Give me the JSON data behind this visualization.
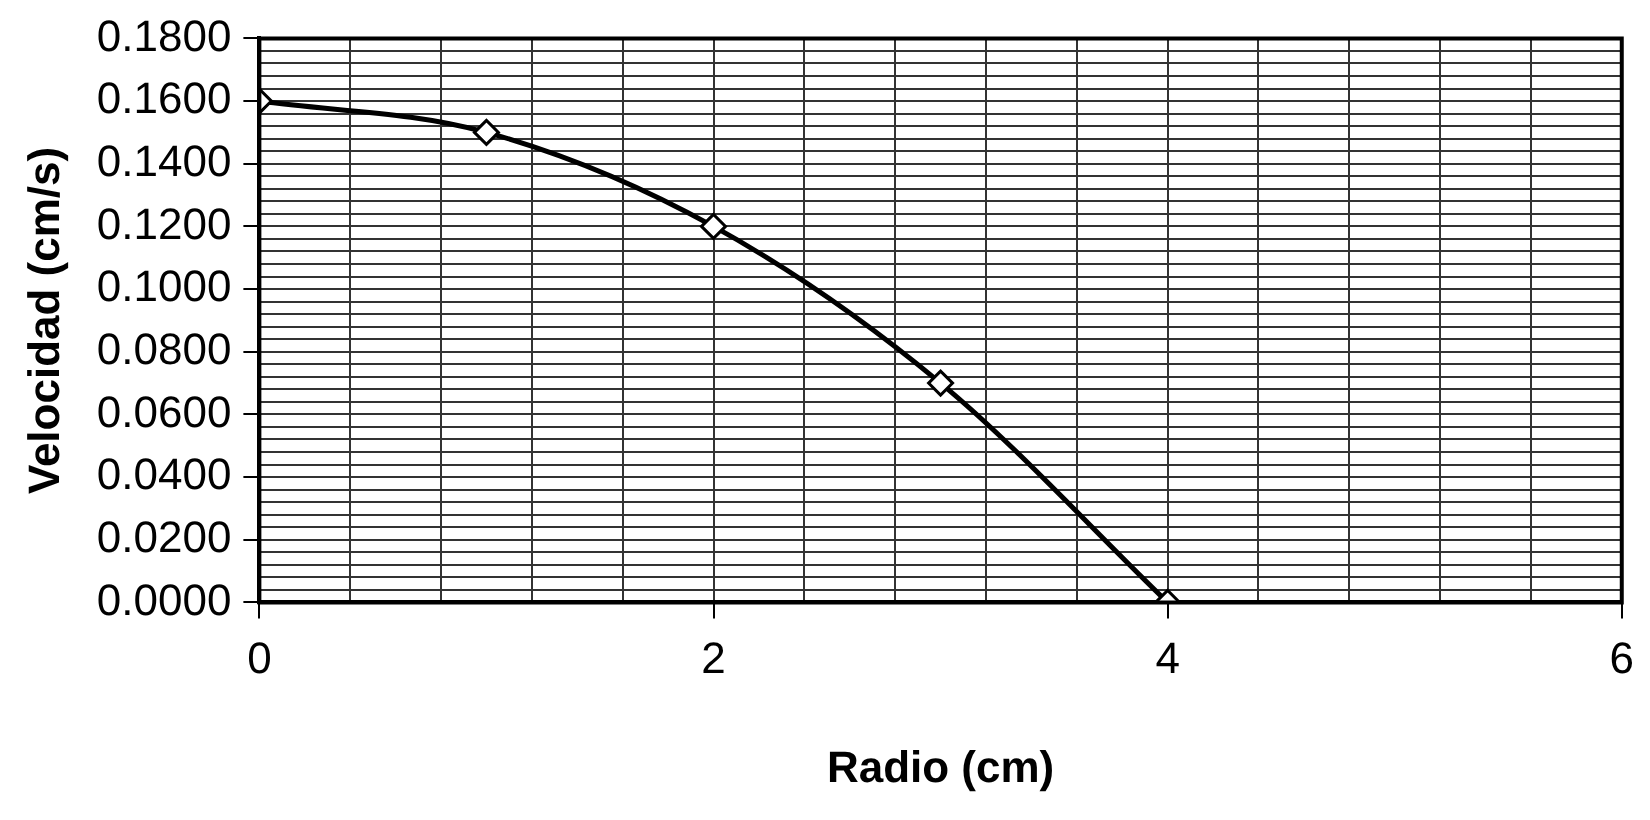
{
  "chart_data": {
    "type": "line",
    "xlabel": "Radio (cm)",
    "ylabel": "Velocidad (cm/s)",
    "x": [
      0,
      1,
      2,
      3,
      4
    ],
    "series": [
      {
        "color": "#000000",
        "values": [
          0.16,
          0.15,
          0.12,
          0.07,
          0
        ]
      }
    ],
    "xlim": [
      0,
      6
    ],
    "xticks": [
      0,
      {
        "value": 0.4,
        "label": null
      },
      {
        "value": 0.8,
        "label": null
      },
      {
        "value": 1.2,
        "label": null
      },
      {
        "value": 1.6,
        "label": null
      },
      2,
      {
        "value": 2.4,
        "label": null
      },
      {
        "value": 2.8,
        "label": null
      },
      {
        "value": 3.2,
        "label": null
      },
      {
        "value": 3.6,
        "label": null
      },
      4,
      {
        "value": 4.4,
        "label": null
      },
      {
        "value": 4.8,
        "label": null
      },
      {
        "value": 5.2,
        "label": null
      },
      {
        "value": 5.6,
        "label": null
      },
      6
    ],
    "ylim": [
      0,
      0.18
    ],
    "yticks": [
      {
        "value": 0,
        "label": "0.0000"
      },
      {
        "value": 0.004,
        "label": null
      },
      {
        "value": 0.008,
        "label": null
      },
      {
        "value": 0.012,
        "label": null
      },
      {
        "value": 0.016,
        "label": null
      },
      {
        "value": 0.02,
        "label": "0.0200"
      },
      {
        "value": 0.024,
        "label": null
      },
      {
        "value": 0.028,
        "label": null
      },
      {
        "value": 0.032,
        "label": null
      },
      {
        "value": 0.036,
        "label": null
      },
      {
        "value": 0.04,
        "label": "0.0400"
      },
      {
        "value": 0.044,
        "label": null
      },
      {
        "value": 0.048,
        "label": null
      },
      {
        "value": 0.052,
        "label": null
      },
      {
        "value": 0.056,
        "label": null
      },
      {
        "value": 0.06,
        "label": "0.0600"
      },
      {
        "value": 0.064,
        "label": null
      },
      {
        "value": 0.068,
        "label": null
      },
      {
        "value": 0.072,
        "label": null
      },
      {
        "value": 0.076,
        "label": null
      },
      {
        "value": 0.08,
        "label": "0.0800"
      },
      {
        "value": 0.084,
        "label": null
      },
      {
        "value": 0.088,
        "label": null
      },
      {
        "value": 0.092,
        "label": null
      },
      {
        "value": 0.096,
        "label": null
      },
      {
        "value": 0.1,
        "label": "0.1000"
      },
      {
        "value": 0.104,
        "label": null
      },
      {
        "value": 0.108,
        "label": null
      },
      {
        "value": 0.112,
        "label": null
      },
      {
        "value": 0.116,
        "label": null
      },
      {
        "value": 0.12,
        "label": "0.1200"
      },
      {
        "value": 0.124,
        "label": null
      },
      {
        "value": 0.128,
        "label": null
      },
      {
        "value": 0.132,
        "label": null
      },
      {
        "value": 0.136,
        "label": null
      },
      {
        "value": 0.14,
        "label": "0.1400"
      },
      {
        "value": 0.144,
        "label": null
      },
      {
        "value": 0.148,
        "label": null
      },
      {
        "value": 0.152,
        "label": null
      },
      {
        "value": 0.156,
        "label": null
      },
      {
        "value": 0.16,
        "label": "0.1600"
      },
      {
        "value": 0.164,
        "label": null
      },
      {
        "value": 0.168,
        "label": null
      },
      {
        "value": 0.172,
        "label": null
      },
      {
        "value": 0.176,
        "label": null
      },
      {
        "value": 0.18,
        "label": "0.1800"
      }
    ],
    "grid": true,
    "legend": false,
    "marker": "diamond",
    "line_style": "solid"
  }
}
